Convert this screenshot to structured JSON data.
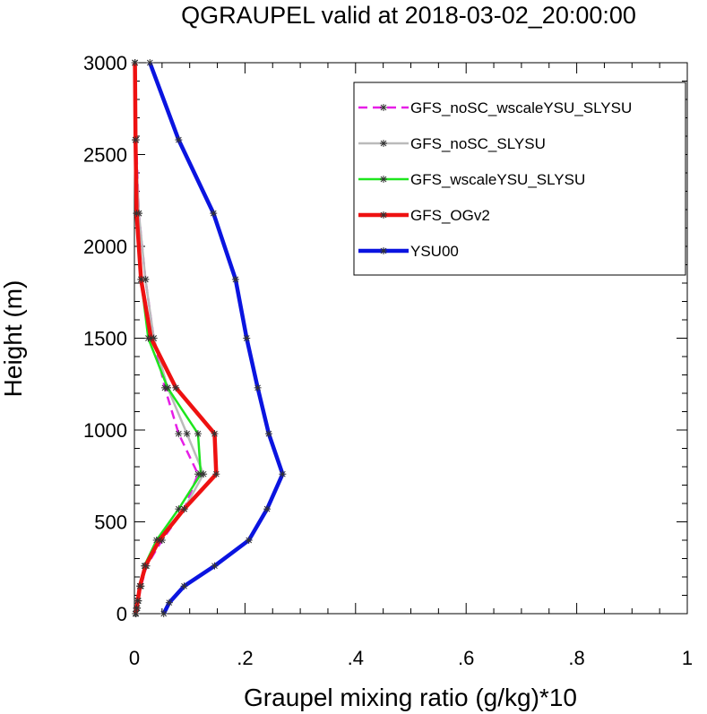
{
  "chart_data": {
    "type": "line",
    "title": "QGRAUPEL valid at 2018-03-02_20:00:00",
    "xlabel": "Graupel mixing ratio (g/kg)*10",
    "ylabel": "Height (m)",
    "xlim": [
      0,
      1
    ],
    "ylim": [
      0,
      3000
    ],
    "x_ticks": [
      0,
      0.2,
      0.4,
      0.6,
      0.8,
      1
    ],
    "x_tick_labels": [
      "0",
      ".2",
      ".4",
      ".6",
      ".8",
      "1"
    ],
    "y_ticks": [
      0,
      500,
      1000,
      1500,
      2000,
      2500,
      3000
    ],
    "y_tick_labels": [
      "0",
      "500",
      "1000",
      "1500",
      "2000",
      "2500",
      "3000"
    ],
    "legend_position": "top-right",
    "series": [
      {
        "name": "GFS_noSC_wscaleYSU_SLYSU",
        "color": "#e61ee6",
        "dash": true,
        "points": [
          [
            0.003,
            0
          ],
          [
            0.005,
            30
          ],
          [
            0.007,
            70
          ],
          [
            0.012,
            150
          ],
          [
            0.022,
            260
          ],
          [
            0.05,
            400
          ],
          [
            0.09,
            570
          ],
          [
            0.115,
            760
          ],
          [
            0.08,
            980
          ],
          [
            0.055,
            1230
          ],
          [
            0.035,
            1500
          ],
          [
            0.02,
            1820
          ],
          [
            0.008,
            2180
          ],
          [
            0.003,
            2580
          ],
          [
            0.001,
            3000
          ]
        ]
      },
      {
        "name": "GFS_noSC_SLYSU",
        "color": "#bbbbbb",
        "dash": false,
        "points": [
          [
            0.003,
            0
          ],
          [
            0.005,
            30
          ],
          [
            0.007,
            70
          ],
          [
            0.011,
            150
          ],
          [
            0.02,
            260
          ],
          [
            0.045,
            400
          ],
          [
            0.09,
            570
          ],
          [
            0.125,
            760
          ],
          [
            0.095,
            980
          ],
          [
            0.06,
            1230
          ],
          [
            0.035,
            1500
          ],
          [
            0.02,
            1820
          ],
          [
            0.008,
            2180
          ],
          [
            0.002,
            2580
          ],
          [
            0.001,
            3000
          ]
        ]
      },
      {
        "name": "GFS_wscaleYSU_SLYSU",
        "color": "#1ee61e",
        "dash": false,
        "points": [
          [
            0.002,
            0
          ],
          [
            0.004,
            30
          ],
          [
            0.006,
            70
          ],
          [
            0.01,
            150
          ],
          [
            0.018,
            260
          ],
          [
            0.04,
            400
          ],
          [
            0.08,
            570
          ],
          [
            0.12,
            760
          ],
          [
            0.115,
            980
          ],
          [
            0.06,
            1230
          ],
          [
            0.025,
            1500
          ],
          [
            0.012,
            1820
          ],
          [
            0.004,
            2180
          ],
          [
            0.002,
            2580
          ],
          [
            0.001,
            3000
          ]
        ]
      },
      {
        "name": "GFS_OGv2",
        "color": "#ee1111",
        "dash": false,
        "points": [
          [
            0.002,
            0
          ],
          [
            0.004,
            30
          ],
          [
            0.006,
            70
          ],
          [
            0.01,
            150
          ],
          [
            0.02,
            260
          ],
          [
            0.045,
            400
          ],
          [
            0.09,
            570
          ],
          [
            0.148,
            760
          ],
          [
            0.145,
            980
          ],
          [
            0.075,
            1230
          ],
          [
            0.03,
            1500
          ],
          [
            0.012,
            1820
          ],
          [
            0.004,
            2180
          ],
          [
            0.002,
            2580
          ],
          [
            0.001,
            3000
          ]
        ]
      },
      {
        "name": "YSU00",
        "color": "#0a14e0",
        "dash": false,
        "points": [
          [
            0.053,
            0
          ],
          [
            0.063,
            60
          ],
          [
            0.09,
            150
          ],
          [
            0.145,
            260
          ],
          [
            0.207,
            400
          ],
          [
            0.24,
            570
          ],
          [
            0.268,
            760
          ],
          [
            0.243,
            980
          ],
          [
            0.223,
            1230
          ],
          [
            0.203,
            1500
          ],
          [
            0.183,
            1820
          ],
          [
            0.143,
            2180
          ],
          [
            0.08,
            2580
          ],
          [
            0.028,
            3000
          ]
        ]
      }
    ]
  }
}
